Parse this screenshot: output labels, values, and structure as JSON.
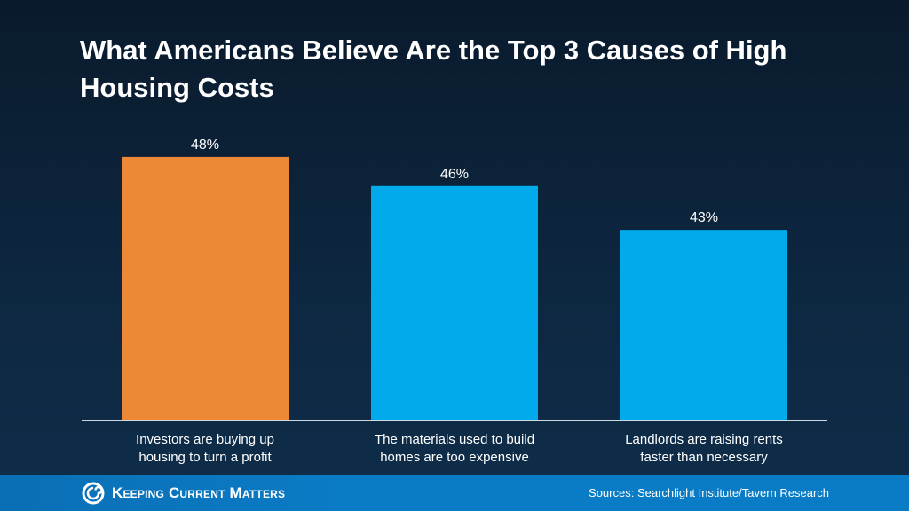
{
  "chart_data": {
    "type": "bar",
    "title": "What Americans Believe Are the Top 3 Causes of High Housing Costs",
    "categories": [
      [
        "Investors are buying up",
        "housing to turn a profit"
      ],
      [
        "The materials used to build",
        "homes are too expensive"
      ],
      [
        "Landlords are raising rents",
        "faster than necessary"
      ]
    ],
    "values": [
      48,
      46,
      43
    ],
    "data_labels": [
      "48%",
      "46%",
      "43%"
    ],
    "colors": [
      "#ed8936",
      "#00aaeb",
      "#00aaeb"
    ],
    "ylim": [
      30,
      50
    ],
    "grid": false,
    "legend": "none"
  },
  "footer": {
    "brand": "Keeping Current Matters",
    "source": "Sources: Searchlight Institute/Tavern Research",
    "brand_color": "#0a7cc6"
  }
}
